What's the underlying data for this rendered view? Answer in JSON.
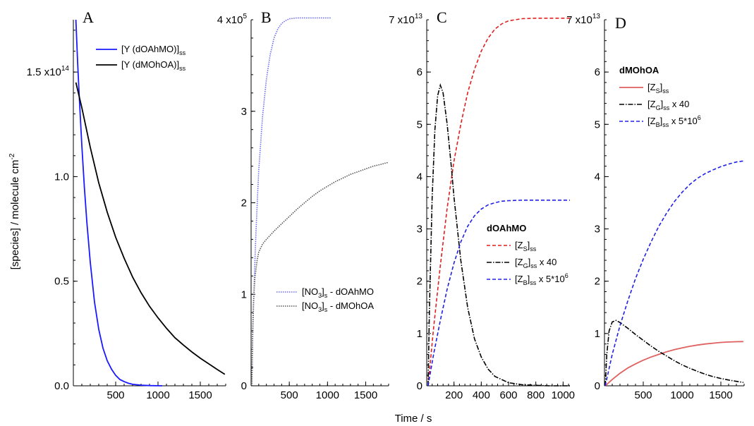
{
  "figure": {
    "xlabel": "Time / s",
    "ylabel": "[species] / molecule cm",
    "ylabel_sup": "-2"
  },
  "chart_data": [
    {
      "panel": "A",
      "type": "line",
      "xlabel": "Time / s",
      "ylabel": "[species] / molecule cm-2",
      "xlim": [
        0,
        1800
      ],
      "ylim": [
        0,
        175000000000000.0
      ],
      "x_ticks": [
        500,
        1000,
        1500
      ],
      "y_ticks": [
        0,
        0.5,
        1.0
      ],
      "y_tick_labels": [
        "0.0",
        "0.5",
        "1.0"
      ],
      "y_top_label": {
        "base": "1.5 x10",
        "exp": "14"
      },
      "legend_position": "top-right",
      "series": [
        {
          "name": "[Y (dOAhMO)]ss",
          "legend": {
            "main": "[Y (dOAhMO)]",
            "sub": "ss"
          },
          "color": "#1a1aff",
          "style": "solid",
          "x": [
            30,
            50,
            70,
            100,
            130,
            160,
            200,
            250,
            300,
            350,
            400,
            450,
            500,
            550,
            600,
            650,
            700,
            800,
            900,
            1050
          ],
          "y": [
            175000000000000.0,
            155000000000000.0,
            138000000000000.0,
            115000000000000.0,
            95000000000000.0,
            78000000000000.0,
            59000000000000.0,
            40000000000000.0,
            27000000000000.0,
            18000000000000.0,
            12000000000000.0,
            8000000000000.0,
            5000000000000.0,
            3000000000000.0,
            2000000000000.0,
            1200000000000.0,
            700000000000.0,
            300000000000.0,
            100000000000.0,
            0
          ]
        },
        {
          "name": "[Y (dMOhOA)]ss",
          "legend": {
            "main": "[Y (dMOhOA)]",
            "sub": "ss"
          },
          "color": "#000000",
          "style": "solid",
          "x": [
            30,
            100,
            200,
            300,
            400,
            500,
            600,
            700,
            800,
            900,
            1000,
            1100,
            1200,
            1300,
            1400,
            1500,
            1600,
            1700,
            1790
          ],
          "y": [
            145000000000000.0,
            133000000000000.0,
            114000000000000.0,
            97000000000000.0,
            83000000000000.0,
            71000000000000.0,
            61000000000000.0,
            52000000000000.0,
            44500000000000.0,
            38000000000000.0,
            32500000000000.0,
            27500000000000.0,
            23000000000000.0,
            19500000000000.0,
            16200000000000.0,
            13200000000000.0,
            10500000000000.0,
            7800000000000.0,
            5500000000000.0
          ]
        }
      ]
    },
    {
      "panel": "B",
      "type": "line",
      "xlim": [
        0,
        1800
      ],
      "ylim": [
        0,
        400000.0
      ],
      "x_ticks": [
        500,
        1000,
        1500
      ],
      "y_ticks": [
        0,
        1,
        2,
        3
      ],
      "y_tick_labels": [
        "0",
        "1",
        "2",
        "3"
      ],
      "y_top_label": {
        "base": "4 x10",
        "exp": "5"
      },
      "legend_position": "bottom-right",
      "series": [
        {
          "name": "[NO3]s - dOAhMO",
          "legend": {
            "pre": "[NO",
            "sub": "3",
            "mid": "]",
            "sub2": "s",
            "post": " - dOAhMO"
          },
          "color": "#6b6bf0",
          "style": "dotted",
          "x": [
            10,
            20,
            40,
            60,
            80,
            100,
            150,
            200,
            250,
            300,
            350,
            400,
            450,
            500,
            600,
            700,
            800,
            900,
            1050
          ],
          "y": [
            0,
            50000.0,
            110000.0,
            160000.0,
            200000.0,
            235000.0,
            295000.0,
            335000.0,
            362000.0,
            380000.0,
            390000.0,
            396000.0,
            399000.0,
            401000.0,
            402000.0,
            402000.0,
            402000.0,
            402000.0,
            402000.0
          ]
        },
        {
          "name": "[NO3]s - dMOhOA",
          "legend": {
            "pre": "[NO",
            "sub": "3",
            "mid": "]",
            "sub2": "s",
            "post": " - dMOhOA"
          },
          "color": "#555555",
          "style": "dotted",
          "x": [
            10,
            15,
            20,
            30,
            50,
            80,
            100,
            150,
            200,
            300,
            400,
            500,
            600,
            700,
            800,
            900,
            1000,
            1100,
            1200,
            1300,
            1400,
            1500,
            1600,
            1700,
            1790
          ],
          "y": [
            0,
            30000.0,
            60000.0,
            90000.0,
            118000.0,
            138000.0,
            146000.0,
            155000.0,
            160000.0,
            169000.0,
            177000.0,
            185000.0,
            193000.0,
            200000.0,
            207000.0,
            213000.0,
            218000.0,
            223000.0,
            227000.0,
            231000.0,
            234000.0,
            237000.0,
            240000.0,
            242000.0,
            244000.0
          ]
        }
      ]
    },
    {
      "panel": "C",
      "type": "line",
      "xlim": [
        0,
        1050
      ],
      "ylim": [
        0,
        70000000000000.0
      ],
      "x_ticks": [
        200,
        400,
        600,
        800,
        1000
      ],
      "x_tick_labels": [
        "200",
        "400",
        "600",
        "800",
        "1000"
      ],
      "y_ticks": [
        0,
        1,
        2,
        3,
        4,
        5,
        6
      ],
      "y_tick_labels": [
        "0",
        "1",
        "2",
        "3",
        "4",
        "5",
        "6"
      ],
      "y_top_label": {
        "base": "7 x10",
        "exp": "13"
      },
      "legend_position": "right",
      "legend_title": "dOAhMO",
      "series": [
        {
          "name": "[ZS]ss",
          "legend": {
            "pre": "[Z",
            "sub": "S",
            "mid": "]",
            "sub2": "ss",
            "post": ""
          },
          "color": "#e02020",
          "style": "dashed",
          "x": [
            10,
            50,
            100,
            150,
            200,
            250,
            300,
            350,
            400,
            450,
            500,
            550,
            600,
            700,
            800,
            900,
            1000,
            1050
          ],
          "y": [
            0,
            11000000000000.0,
            23000000000000.0,
            34000000000000.0,
            43000000000000.0,
            50000000000000.0,
            56000000000000.0,
            60500000000000.0,
            64000000000000.0,
            66500000000000.0,
            68200000000000.0,
            69200000000000.0,
            69800000000000.0,
            70200000000000.0,
            70300000000000.0,
            70300000000000.0,
            70300000000000.0,
            70300000000000.0
          ]
        },
        {
          "name": "[ZG]ss x 40",
          "legend": {
            "pre": "[Z",
            "sub": "G",
            "mid": "]",
            "sub2": "ss",
            "post": " x 40"
          },
          "color": "#000000",
          "style": "dashdot",
          "x": [
            10,
            20,
            40,
            60,
            80,
            100,
            120,
            150,
            180,
            200,
            250,
            300,
            350,
            400,
            450,
            500,
            600,
            700,
            800,
            900,
            1000,
            1050
          ],
          "y": [
            0,
            15000000000000.0,
            36000000000000.0,
            49000000000000.0,
            55500000000000.0,
            57500000000000.0,
            56000000000000.0,
            50000000000000.0,
            42000000000000.0,
            36000000000000.0,
            24000000000000.0,
            15000000000000.0,
            9000000000000.0,
            5500000000000.0,
            3200000000000.0,
            1800000000000.0,
            600000000000.0,
            200000000000.0,
            100000000000.0,
            0,
            0,
            0
          ]
        },
        {
          "name": "[ZB]ss x 5*10^6",
          "legend": {
            "pre": "[Z",
            "sub": "B",
            "mid": "]",
            "sub2": "ss",
            "post": " x 5*10",
            "sup": "6"
          },
          "color": "#2020e8",
          "style": "dashed",
          "x": [
            10,
            50,
            100,
            150,
            200,
            250,
            300,
            350,
            400,
            450,
            500,
            550,
            600,
            700,
            800,
            900,
            1000,
            1050
          ],
          "y": [
            0,
            6000000000000.0,
            12500000000000.0,
            18500000000000.0,
            23500000000000.0,
            27500000000000.0,
            30500000000000.0,
            32500000000000.0,
            33800000000000.0,
            34600000000000.0,
            35000000000000.0,
            35300000000000.0,
            35400000000000.0,
            35500000000000.0,
            35500000000000.0,
            35500000000000.0,
            35500000000000.0,
            35500000000000.0
          ]
        }
      ]
    },
    {
      "panel": "D",
      "type": "line",
      "xlim": [
        0,
        1800
      ],
      "ylim": [
        0,
        70000000000000.0
      ],
      "x_ticks": [
        500,
        1000,
        1500
      ],
      "y_ticks": [
        0,
        1,
        2,
        3,
        4,
        5,
        6
      ],
      "y_tick_labels": [
        "0",
        "1",
        "2",
        "3",
        "4",
        "5",
        "6"
      ],
      "y_top_label": {
        "base": "7 x10",
        "exp": "13"
      },
      "legend_position": "top-left",
      "legend_title": "dMOhOA",
      "series": [
        {
          "name": "[ZS]ss",
          "legend": {
            "pre": "[Z",
            "sub": "S",
            "mid": "]",
            "sub2": "ss",
            "post": ""
          },
          "color": "#e06060",
          "style": "solid",
          "x": [
            10,
            100,
            200,
            300,
            400,
            500,
            600,
            700,
            800,
            900,
            1000,
            1100,
            1200,
            1300,
            1400,
            1500,
            1600,
            1700,
            1790
          ],
          "y": [
            0,
            1200000000000.0,
            2400000000000.0,
            3400000000000.0,
            4200000000000.0,
            4900000000000.0,
            5500000000000.0,
            6000000000000.0,
            6500000000000.0,
            6900000000000.0,
            7250000000000.0,
            7550000000000.0,
            7800000000000.0,
            8000000000000.0,
            8150000000000.0,
            8300000000000.0,
            8380000000000.0,
            8430000000000.0,
            8450000000000.0
          ]
        },
        {
          "name": "[ZG]ss x 40",
          "legend": {
            "pre": "[Z",
            "sub": "G",
            "mid": "]",
            "sub2": "ss",
            "post": " x 40"
          },
          "color": "#000000",
          "style": "dashdot",
          "x": [
            10,
            30,
            60,
            100,
            150,
            200,
            300,
            400,
            500,
            600,
            700,
            800,
            900,
            1000,
            1100,
            1200,
            1300,
            1400,
            1500,
            1600,
            1700,
            1790
          ],
          "y": [
            0,
            6000000000000.0,
            10500000000000.0,
            12200000000000.0,
            12500000000000.0,
            12100000000000.0,
            11000000000000.0,
            9800000000000.0,
            8700000000000.0,
            7600000000000.0,
            6600000000000.0,
            5700000000000.0,
            4800000000000.0,
            4000000000000.0,
            3350000000000.0,
            2750000000000.0,
            2200000000000.0,
            1750000000000.0,
            1400000000000.0,
            1100000000000.0,
            850000000000.0,
            650000000000.0
          ]
        },
        {
          "name": "[ZB]ss x 5*10^6",
          "legend": {
            "pre": "[Z",
            "sub": "B",
            "mid": "]",
            "sub2": "ss",
            "post": " x 5*10",
            "sup": "6"
          },
          "color": "#2020e8",
          "style": "dashed",
          "x": [
            10,
            100,
            200,
            300,
            400,
            500,
            600,
            700,
            800,
            900,
            1000,
            1100,
            1200,
            1300,
            1400,
            1500,
            1600,
            1700,
            1790
          ],
          "y": [
            0,
            6000000000000.0,
            11500000000000.0,
            16200000000000.0,
            20500000000000.0,
            24200000000000.0,
            27500000000000.0,
            30500000000000.0,
            33000000000000.0,
            35200000000000.0,
            37000000000000.0,
            38500000000000.0,
            39700000000000.0,
            40600000000000.0,
            41300000000000.0,
            41900000000000.0,
            42400000000000.0,
            42800000000000.0,
            43000000000000.0
          ]
        }
      ]
    }
  ]
}
